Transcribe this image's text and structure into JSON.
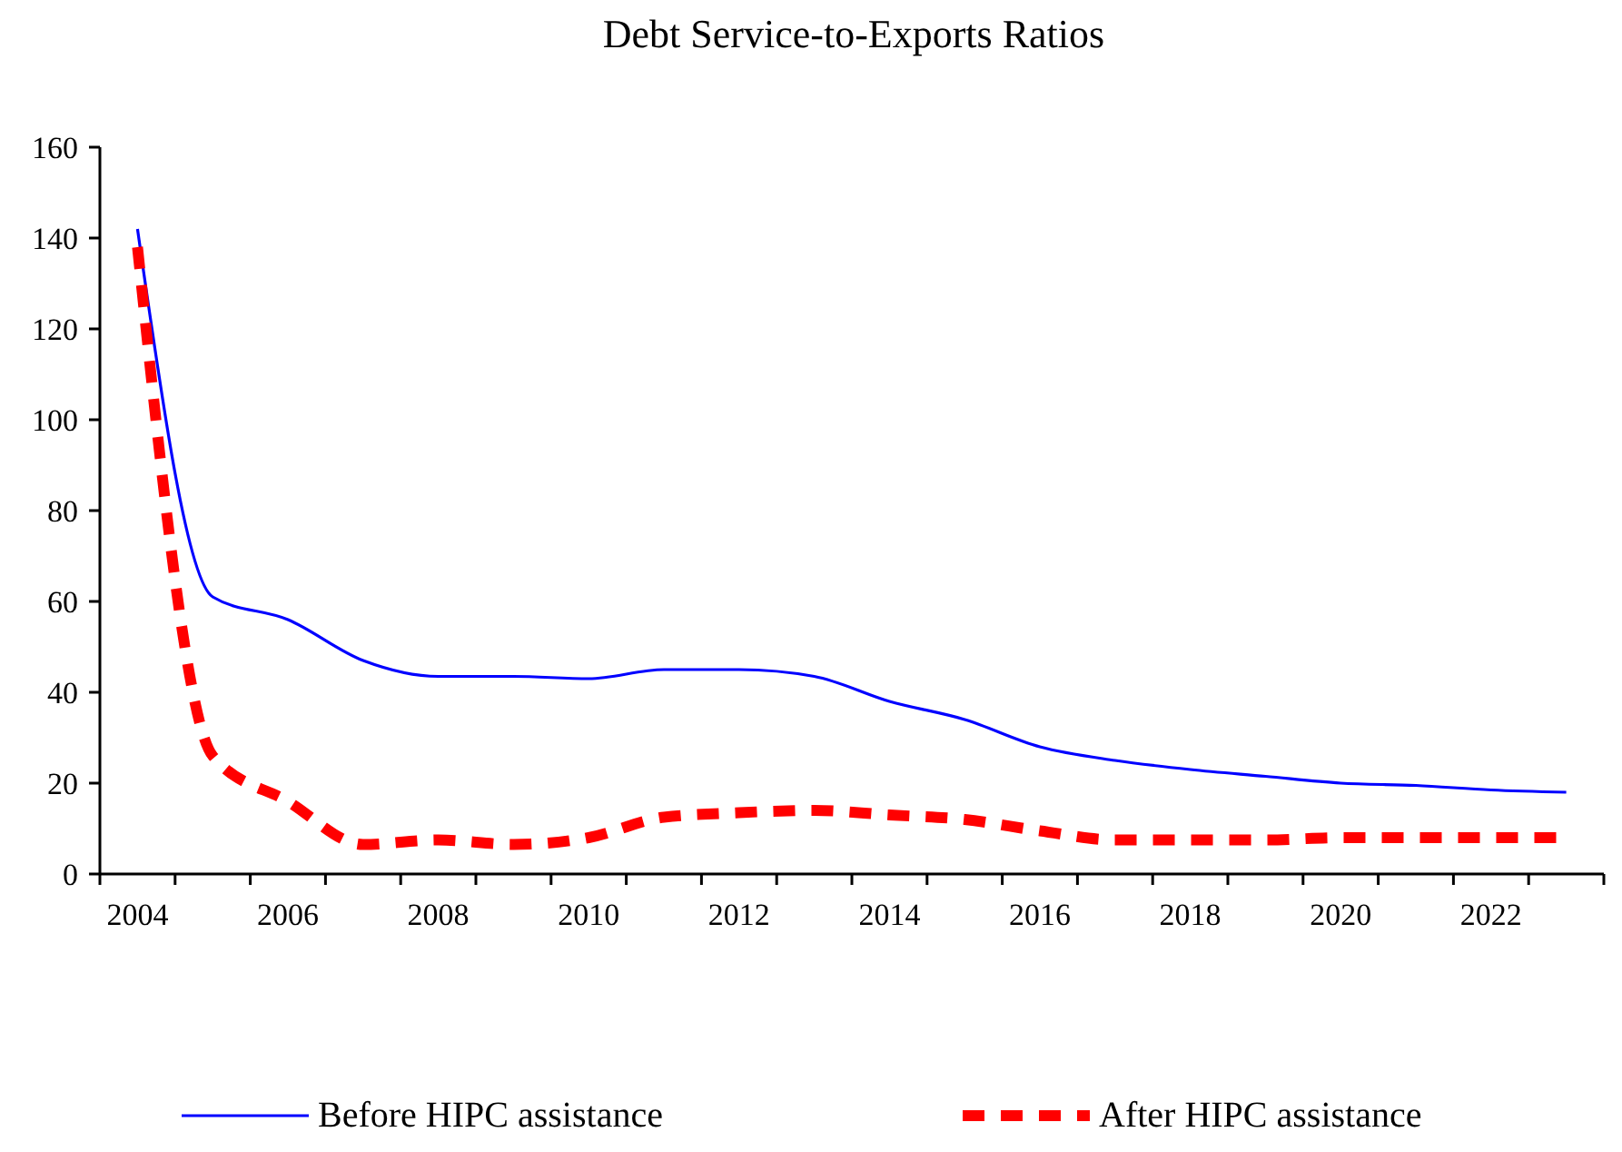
{
  "chart_data": {
    "type": "line",
    "title": "Debt Service-to-Exports Ratios",
    "categories": [
      "2004",
      null,
      "2006",
      null,
      "2008",
      null,
      "2010",
      null,
      "2012",
      null,
      "2014",
      null,
      "2016",
      null,
      "2018",
      null,
      "2020",
      null,
      "2022",
      null
    ],
    "series": [
      {
        "name": "Before HIPC assistance",
        "color": "#0000ff",
        "line_style": "solid",
        "values": [
          142,
          61,
          56,
          47,
          43.5,
          43.5,
          43,
          45,
          45,
          43.5,
          38,
          34,
          28,
          25,
          23,
          21.5,
          20,
          19.5,
          18.5,
          18
        ]
      },
      {
        "name": "After HIPC assistance",
        "color": "#ff0000",
        "line_style": "dashed",
        "values": [
          138,
          26,
          16,
          6.5,
          7.5,
          6.5,
          8,
          12.5,
          13.5,
          14,
          13,
          12,
          9.5,
          7.5,
          7.5,
          7.5,
          8,
          8,
          8,
          8
        ]
      }
    ],
    "ylim": [
      0,
      160
    ],
    "yticks": [
      0,
      20,
      40,
      60,
      80,
      100,
      120,
      140,
      160
    ],
    "grid": false,
    "legend": "bottom",
    "marker": "none"
  }
}
